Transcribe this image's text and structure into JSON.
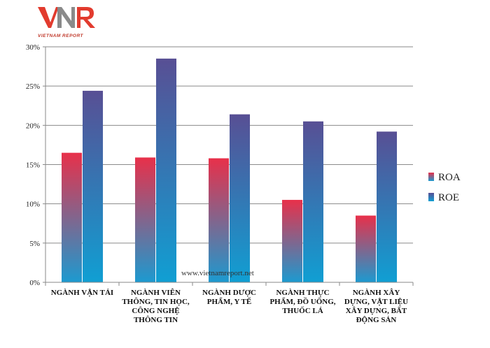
{
  "logo": {
    "mark": "VNR",
    "tagline": "VIETNAM REPORT"
  },
  "watermark": "www.vietnamreport.net",
  "colors": {
    "roa_top": "#e8304a",
    "roa_bottom": "#1c9ad0",
    "roe_top": "#584f94",
    "roe_bottom": "#109fd3",
    "axis": "#8a8a8a",
    "grid": "#8a8a8a"
  },
  "chart_data": {
    "type": "bar",
    "categories": [
      [
        "NGÀNH VẬN TẢI"
      ],
      [
        "NGÀNH VIÊN",
        "THÔNG, TIN HỌC,",
        "CÔNG NGHỆ",
        "THÔNG TIN"
      ],
      [
        "NGÀNH DƯỢC",
        "PHẨM, Y TẾ"
      ],
      [
        "NGÀNH THỰC",
        "PHẨM, ĐỒ UỐNG,",
        "THUỐC LÁ"
      ],
      [
        "NGÀNH XÂY",
        "DỰNG, VẬT LIỆU",
        "XÂY DỰNG, BẤT",
        "ĐỘNG SẢN"
      ]
    ],
    "series": [
      {
        "name": "ROA",
        "values": [
          16.5,
          15.9,
          15.8,
          10.5,
          8.5
        ]
      },
      {
        "name": "ROE",
        "values": [
          24.4,
          28.5,
          21.4,
          20.5,
          19.2
        ]
      }
    ],
    "y_ticks": [
      "0%",
      "5%",
      "10%",
      "15%",
      "20%",
      "25%",
      "30%"
    ],
    "ylim": [
      0,
      30
    ],
    "grid": true,
    "legend_position": "right"
  }
}
